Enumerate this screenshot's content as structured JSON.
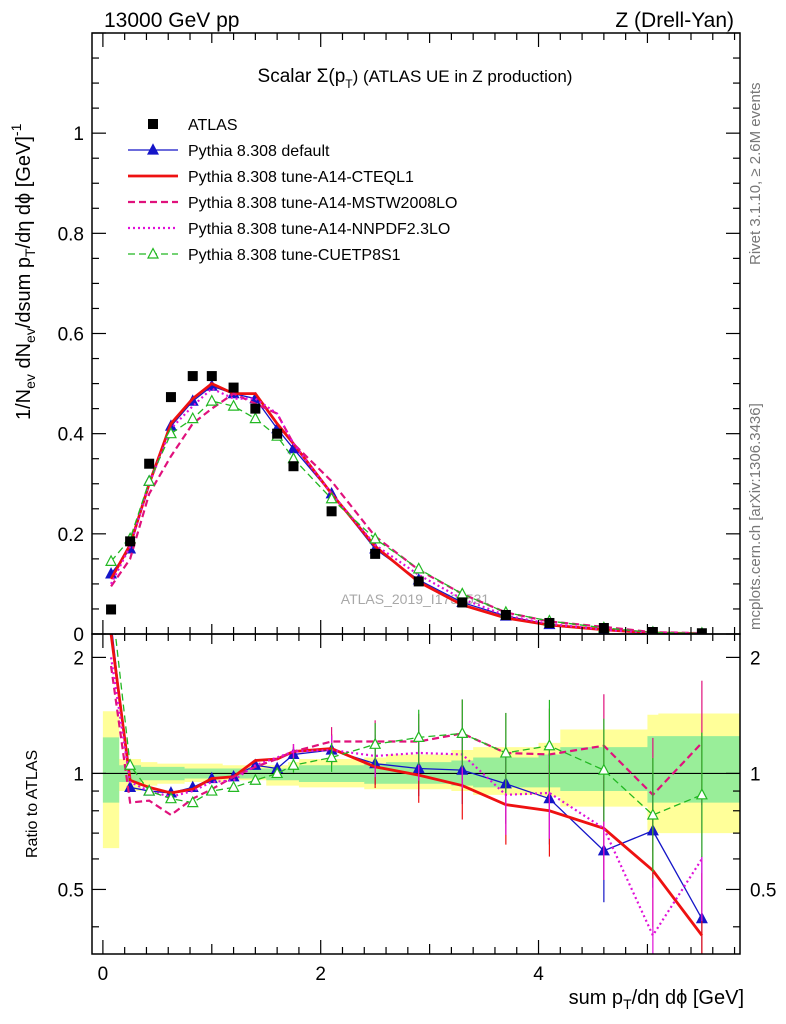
{
  "header": {
    "left": "13000 GeV pp",
    "right": "Z (Drell-Yan)"
  },
  "side_labels": {
    "rivet": "Rivet 3.1.10, ≥ 2.6M events",
    "mcplots": "mcplots.cern.ch [arXiv:1306.3436]"
  },
  "watermark": "ATLAS_2019_I1736531",
  "chart_data": {
    "type": "line",
    "title_main": "Scalar Σ(p",
    "title_sub": "T",
    "title_tail": ") (ATLAS UE in Z production)",
    "xlabel_main": "sum p",
    "xlabel_sub": "T",
    "xlabel_tail": "/dη dϕ [GeV]",
    "ylabel": "1/N_ev dN_ev/dsum p_T/dη dϕ [GeV]^-1",
    "ratio_ylabel": "Ratio to ATLAS",
    "xlim": [
      -0.1,
      5.85
    ],
    "ylim": [
      0,
      1.2
    ],
    "ratio_ylim": [
      0.34,
      2.3
    ],
    "x_ticks": [
      "0",
      "2",
      "4"
    ],
    "y_ticks": [
      "0",
      "0.2",
      "0.4",
      "0.6",
      "0.8",
      "1"
    ],
    "ratio_ticks": [
      "0.5",
      "1",
      "2"
    ],
    "x": [
      0.075,
      0.25,
      0.425,
      0.625,
      0.825,
      1.0,
      1.2,
      1.4,
      1.6,
      1.75,
      2.1,
      2.5,
      2.9,
      3.3,
      3.7,
      4.1,
      4.6,
      5.05,
      5.5
    ],
    "x_bin_edges": [
      0.0,
      0.15,
      0.35,
      0.5,
      0.75,
      0.9,
      1.1,
      1.3,
      1.5,
      1.7,
      1.8,
      2.4,
      2.6,
      3.2,
      3.4,
      4.0,
      4.2,
      5.0,
      5.1,
      5.9
    ],
    "data": {
      "name": "ATLAS",
      "color": "#000000",
      "values": [
        0.049,
        0.185,
        0.34,
        0.473,
        0.515,
        0.515,
        0.492,
        0.45,
        0.4,
        0.335,
        0.245,
        0.16,
        0.105,
        0.063,
        0.038,
        0.022,
        0.012,
        0.004,
        0.0015
      ]
    },
    "band_yellow": [
      [
        0.64,
        1.45
      ],
      [
        0.9,
        1.09
      ],
      [
        0.93,
        1.07
      ],
      [
        0.94,
        1.06
      ],
      [
        0.95,
        1.06
      ],
      [
        0.95,
        1.06
      ],
      [
        0.96,
        1.05
      ],
      [
        0.96,
        1.05
      ],
      [
        0.93,
        1.05
      ],
      [
        0.93,
        1.07
      ],
      [
        0.92,
        1.09
      ],
      [
        0.91,
        1.1
      ],
      [
        0.91,
        1.12
      ],
      [
        0.9,
        1.15
      ],
      [
        0.88,
        1.17
      ],
      [
        0.87,
        1.2
      ],
      [
        0.82,
        1.3
      ],
      [
        0.7,
        1.42
      ],
      [
        0.7,
        1.43
      ]
    ],
    "band_green": [
      [
        0.84,
        1.24
      ],
      [
        0.95,
        1.05
      ],
      [
        0.96,
        1.04
      ],
      [
        0.96,
        1.04
      ],
      [
        0.97,
        1.03
      ],
      [
        0.97,
        1.03
      ],
      [
        0.97,
        1.03
      ],
      [
        0.97,
        1.03
      ],
      [
        0.96,
        1.03
      ],
      [
        0.96,
        1.04
      ],
      [
        0.95,
        1.05
      ],
      [
        0.94,
        1.06
      ],
      [
        0.94,
        1.07
      ],
      [
        0.93,
        1.08
      ],
      [
        0.92,
        1.1
      ],
      [
        0.92,
        1.12
      ],
      [
        0.9,
        1.17
      ],
      [
        0.84,
        1.25
      ],
      [
        0.84,
        1.25
      ]
    ],
    "series": [
      {
        "name": "Pythia 8.308 default",
        "color": "#1515c8",
        "style": "solid",
        "width": 1.3,
        "marker": "triangle",
        "values": [
          0.12,
          0.17,
          0.305,
          0.415,
          0.465,
          0.495,
          0.48,
          0.47,
          0.41,
          0.37,
          0.28,
          0.17,
          0.108,
          0.063,
          0.036,
          0.019,
          0.0078,
          0.0028,
          0.0006
        ],
        "ratio": [
          2.45,
          0.92,
          0.9,
          0.89,
          0.92,
          0.97,
          0.98,
          1.05,
          1.03,
          1.12,
          1.15,
          1.06,
          1.03,
          1.02,
          0.94,
          0.86,
          0.63,
          0.71,
          0.42
        ]
      },
      {
        "name": "Pythia 8.308 tune-A14-CTEQL1",
        "color": "#ee1111",
        "style": "solid",
        "width": 2.8,
        "marker": "none",
        "values": [
          0.11,
          0.178,
          0.3,
          0.42,
          0.47,
          0.5,
          0.48,
          0.48,
          0.42,
          0.38,
          0.28,
          0.175,
          0.104,
          0.058,
          0.032,
          0.018,
          0.0086,
          0.0022,
          0.00058
        ],
        "ratio": [
          2.3,
          0.96,
          0.92,
          0.89,
          0.91,
          0.97,
          0.98,
          1.08,
          1.09,
          1.14,
          1.16,
          1.04,
          0.99,
          0.93,
          0.83,
          0.8,
          0.72,
          0.56,
          0.38
        ]
      },
      {
        "name": "Pythia 8.308 tune-A14-MSTW2008LO",
        "color": "#e0117c",
        "style": "dashed",
        "width": 2.2,
        "marker": "none",
        "values": [
          0.095,
          0.15,
          0.28,
          0.355,
          0.42,
          0.45,
          0.48,
          0.46,
          0.44,
          0.38,
          0.305,
          0.195,
          0.128,
          0.08,
          0.043,
          0.025,
          0.0142,
          0.0036,
          0.0018
        ],
        "ratio": [
          1.9,
          0.84,
          0.85,
          0.78,
          0.86,
          0.91,
          0.98,
          1.04,
          1.09,
          1.14,
          1.21,
          1.21,
          1.21,
          1.27,
          1.13,
          1.12,
          1.18,
          0.88,
          1.2
        ]
      },
      {
        "name": "Pythia 8.308 tune-A14-NNPDF2.3LO",
        "color": "#e010d8",
        "style": "dotted",
        "width": 2.2,
        "marker": "none",
        "values": [
          0.1,
          0.175,
          0.3,
          0.41,
          0.455,
          0.49,
          0.47,
          0.47,
          0.44,
          0.38,
          0.28,
          0.178,
          0.118,
          0.07,
          0.037,
          0.02,
          0.0086,
          0.0015,
          0.0009
        ],
        "ratio": [
          2.0,
          0.95,
          0.9,
          0.87,
          0.9,
          0.95,
          0.96,
          1.05,
          1.1,
          1.14,
          1.15,
          1.11,
          1.13,
          1.12,
          0.88,
          0.89,
          0.72,
          0.38,
          0.6
        ]
      },
      {
        "name": "Pythia 8.308 tune-CUETP8S1",
        "color": "#22b822",
        "style": "dashed",
        "width": 1.3,
        "marker": "triangle-open",
        "values": [
          0.145,
          0.19,
          0.305,
          0.4,
          0.43,
          0.465,
          0.455,
          0.43,
          0.395,
          0.35,
          0.27,
          0.19,
          0.13,
          0.08,
          0.043,
          0.026,
          0.0122,
          0.0031,
          0.0013
        ],
        "ratio": [
          2.9,
          1.05,
          0.9,
          0.86,
          0.84,
          0.9,
          0.92,
          0.96,
          1.0,
          1.05,
          1.1,
          1.19,
          1.24,
          1.27,
          1.13,
          1.18,
          1.02,
          0.78,
          0.88
        ]
      }
    ]
  }
}
